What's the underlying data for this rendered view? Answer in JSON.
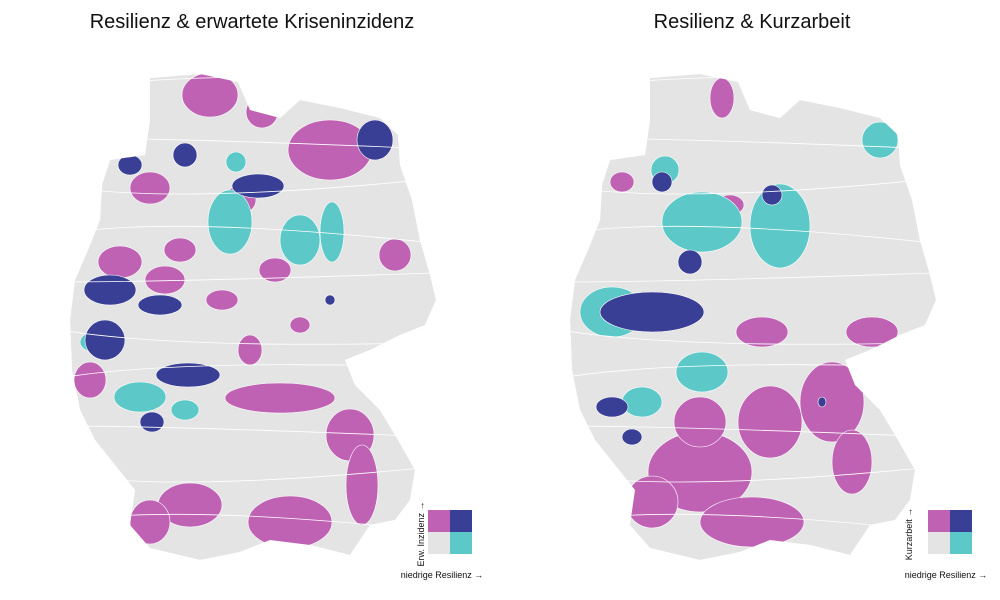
{
  "maps": [
    {
      "title": "Resilienz & erwartete Kriseninzidenz",
      "legend": {
        "y_label": "Erw. Inzidenz →",
        "x_label": "niedrige Resilienz →"
      }
    },
    {
      "title": "Resilienz & Kurzarbeit",
      "legend": {
        "y_label": "Kurzarbeit →",
        "x_label": "niedrige Resilienz →"
      }
    }
  ],
  "legend_colors": [
    [
      "#c062b4",
      "#3a3f96"
    ],
    [
      "#e4e4e4",
      "#5cc8c8"
    ]
  ]
}
